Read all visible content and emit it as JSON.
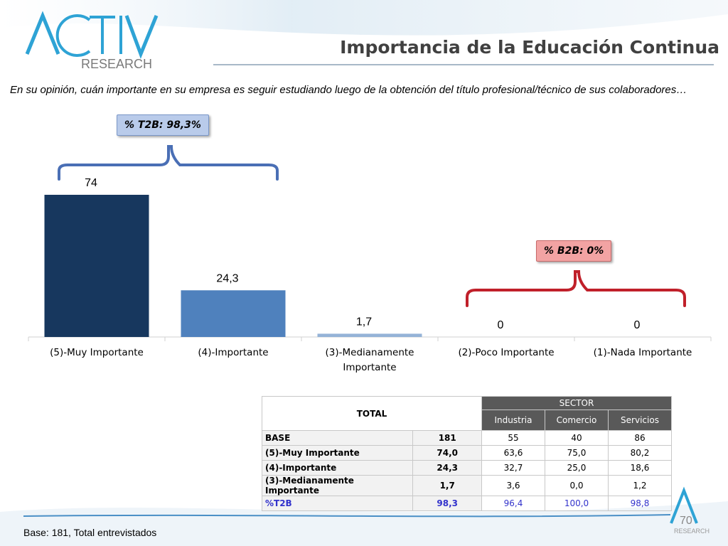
{
  "header": {
    "logo_main": "ACTIV",
    "logo_sub": "RESEARCH",
    "title": "Importancia de la Educación Continua"
  },
  "question": "En su opinión, cuán importante en su empresa es seguir estudiando luego de la obtención del título profesional/técnico de sus colaboradores…",
  "badges": {
    "t2b": "% T2B: 98,3%",
    "b2b": "% B2B: 0%"
  },
  "chart_data": {
    "type": "bar",
    "categories": [
      "(5)-Muy Importante",
      "(4)-Importante",
      "(3)-Medianamente Importante",
      "(2)-Poco Importante",
      "(1)-Nada Importante"
    ],
    "values": [
      74,
      24.3,
      1.7,
      0,
      0
    ],
    "data_labels": [
      "74",
      "24,3",
      "1,7",
      "0",
      "0"
    ],
    "colors": [
      "#17375e",
      "#4f81bd",
      "#95b3d7",
      "#95b3d7",
      "#95b3d7"
    ],
    "ylim": [
      0,
      74
    ],
    "grid": false,
    "legend": "none"
  },
  "table": {
    "total_label": "TOTAL",
    "sector_label": "SECTOR",
    "sectors": [
      "Industria",
      "Comercio",
      "Servicios"
    ],
    "rows": [
      {
        "label": "BASE",
        "total": "181",
        "values": [
          "55",
          "40",
          "86"
        ],
        "blue": false
      },
      {
        "label": "(5)-Muy Importante",
        "total": "74,0",
        "values": [
          "63,6",
          "75,0",
          "80,2"
        ],
        "blue": false
      },
      {
        "label": "(4)-Importante",
        "total": "24,3",
        "values": [
          "32,7",
          "25,0",
          "18,6"
        ],
        "blue": false
      },
      {
        "label": "(3)-Medianamente Importante",
        "total": "1,7",
        "values": [
          "3,6",
          "0,0",
          "1,2"
        ],
        "blue": false
      },
      {
        "label": "%T2B",
        "total": "98,3",
        "values": [
          "96,4",
          "100,0",
          "98,8"
        ],
        "blue": true
      }
    ]
  },
  "footer": {
    "base_note": "Base: 181, Total entrevistados",
    "page_number": "70",
    "small_logo_text": "RESEARCH"
  },
  "colors": {
    "accent_blue": "#4f81bd",
    "dark_navy": "#17375e",
    "bracket_blue": "#4a6fb5",
    "bracket_red": "#c0202a"
  }
}
